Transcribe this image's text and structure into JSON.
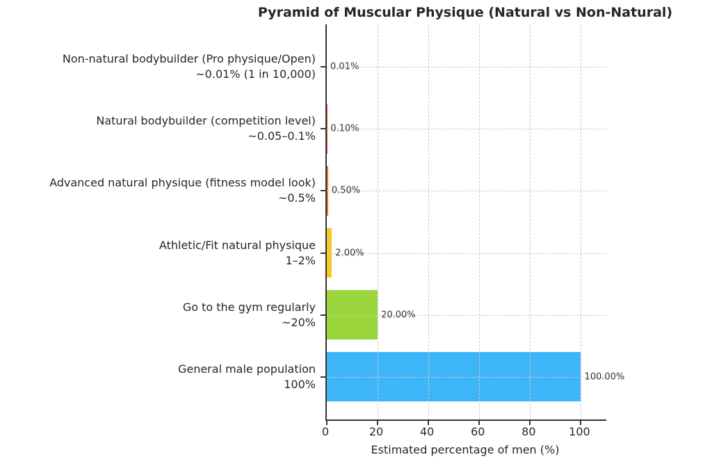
{
  "chart_data": {
    "type": "bar",
    "orientation": "horizontal",
    "title": "Pyramid of Muscular Physique (Natural vs Non-Natural)",
    "xlabel": "Estimated percentage of men (%)",
    "xlim": [
      0,
      110
    ],
    "xticks": [
      0,
      20,
      40,
      60,
      80,
      100
    ],
    "grid": "dashed gridlines on both axes, drawn over bars",
    "legend": null,
    "categories": [
      {
        "label": "Non-natural bodybuilder (Pro physique/Open)",
        "sublabel": "~0.01% (1 in 10,000)",
        "value": 0.01,
        "value_label": "0.01%",
        "color": "#b03a2e"
      },
      {
        "label": "Natural bodybuilder (competition level)",
        "sublabel": "~0.05–0.1%",
        "value": 0.1,
        "value_label": "0.10%",
        "color": "#e74c3c"
      },
      {
        "label": "Advanced natural physique (fitness model look)",
        "sublabel": "~0.5%",
        "value": 0.5,
        "value_label": "0.50%",
        "color": "#e2761c"
      },
      {
        "label": "Athletic/Fit natural physique",
        "sublabel": "1–2%",
        "value": 2,
        "value_label": "2.00%",
        "color": "#f9c62a"
      },
      {
        "label": "Go to the gym regularly",
        "sublabel": "~20%",
        "value": 20,
        "value_label": "20.00%",
        "color": "#9bd53c"
      },
      {
        "label": "General male population",
        "sublabel": "100%",
        "value": 100,
        "value_label": "100.00%",
        "color": "#3eb5f7"
      }
    ],
    "colors": {
      "axis": "#333333",
      "grid": "#c9c9c9",
      "text": "#262626",
      "value_text": "#333333"
    }
  }
}
